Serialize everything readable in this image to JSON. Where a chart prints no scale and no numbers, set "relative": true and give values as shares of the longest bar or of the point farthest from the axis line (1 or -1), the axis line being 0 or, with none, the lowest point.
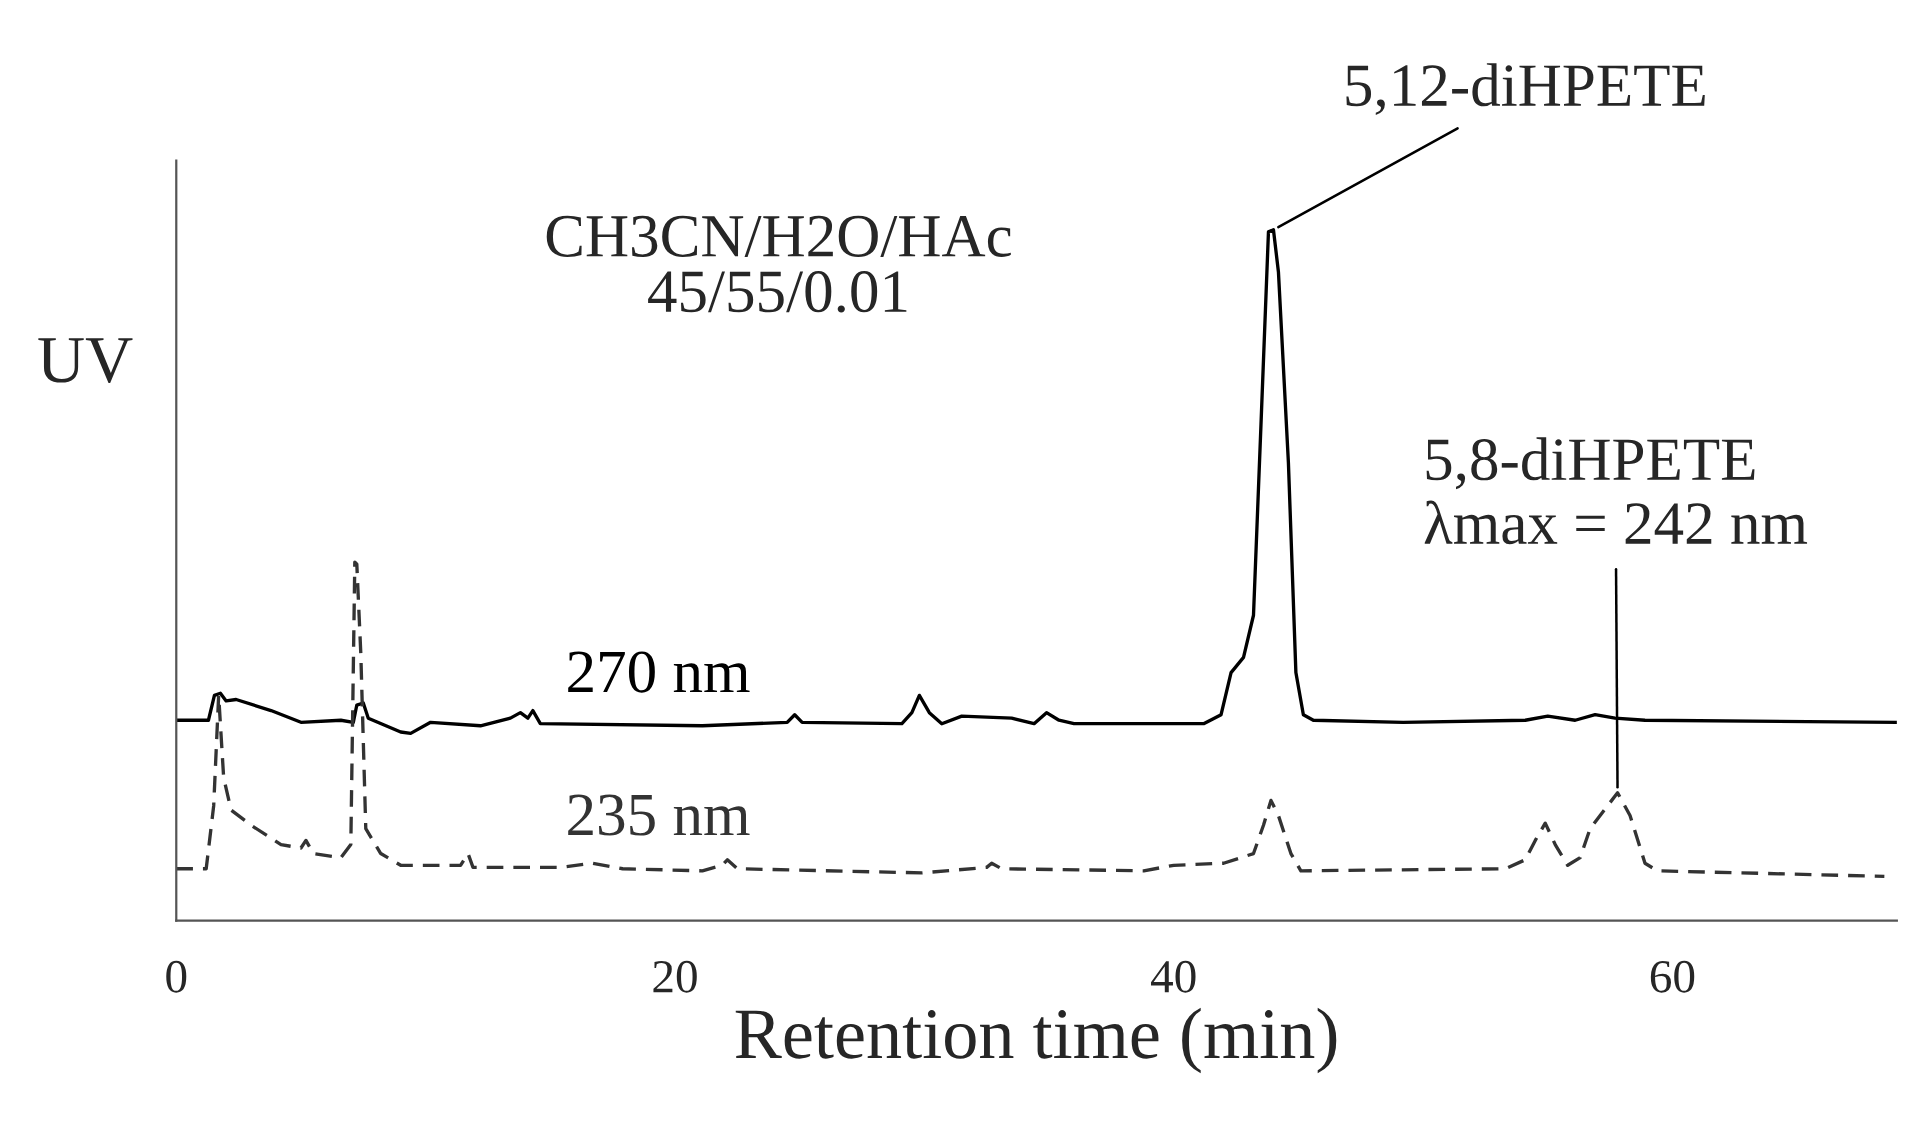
{
  "chart_data": {
    "type": "line",
    "relative": true,
    "xlabel": "Retention time (min)",
    "ylabel": "UV",
    "xlim": [
      0,
      69
    ],
    "xticks": [
      0,
      20,
      40,
      60
    ],
    "grid": false,
    "legend": false,
    "marker": "none",
    "annotations": [
      "CH3CN/H2O/HAc\n45/55/0.01",
      {
        "text": "5,12-diHPETE",
        "x": 44.0,
        "y": 1.0
      },
      {
        "text": "5,8-diHPETE\nλmax = 242 nm",
        "x": 57.8,
        "y": 0.185
      }
    ],
    "series": [
      {
        "name": "270 nm",
        "color": "#000000",
        "line_style": "solid",
        "x": [
          0,
          1.29,
          1.53,
          1.77,
          2.0,
          2.4,
          3.8,
          5.0,
          6.6,
          7.1,
          7.24,
          7.5,
          7.7,
          9.0,
          9.4,
          10.2,
          12.2,
          13.4,
          13.8,
          14.1,
          14.3,
          14.6,
          21.1,
          24.5,
          24.8,
          25.1,
          29.1,
          29.5,
          29.8,
          30.2,
          30.7,
          31.5,
          33.5,
          34.4,
          34.9,
          35.4,
          36.0,
          41.2,
          41.9,
          42.3,
          42.8,
          43.2,
          43.5,
          43.8,
          44.0,
          44.2,
          44.6,
          44.9,
          45.2,
          45.6,
          49.2,
          54.1,
          55.0,
          56.1,
          56.9,
          57.7,
          58.9,
          69.0
        ],
        "values": [
          0.29,
          0.29,
          0.326,
          0.329,
          0.318,
          0.32,
          0.304,
          0.287,
          0.29,
          0.287,
          0.312,
          0.315,
          0.293,
          0.273,
          0.271,
          0.287,
          0.282,
          0.293,
          0.301,
          0.293,
          0.304,
          0.285,
          0.282,
          0.287,
          0.298,
          0.287,
          0.285,
          0.301,
          0.326,
          0.301,
          0.285,
          0.296,
          0.293,
          0.285,
          0.301,
          0.29,
          0.285,
          0.285,
          0.298,
          0.359,
          0.381,
          0.442,
          0.718,
          0.997,
          1.0,
          0.939,
          0.663,
          0.359,
          0.298,
          0.29,
          0.287,
          0.29,
          0.296,
          0.29,
          0.298,
          0.293,
          0.29,
          0.287
        ]
      },
      {
        "name": "235 nm",
        "color": "#333333",
        "line_style": "dashed",
        "x": [
          0,
          1.2,
          1.5,
          1.7,
          1.9,
          2.2,
          3.0,
          4.2,
          5.0,
          5.2,
          5.5,
          6.6,
          7.0,
          7.16,
          7.24,
          7.4,
          7.6,
          8.2,
          9.0,
          11.4,
          11.7,
          11.9,
          15.4,
          16.7,
          17.9,
          21.1,
          21.9,
          22.1,
          22.5,
          29.9,
          32.5,
          32.7,
          33.1,
          38.8,
          40.0,
          42.0,
          43.2,
          43.6,
          43.9,
          44.2,
          44.7,
          45.1,
          53.3,
          54.1,
          54.5,
          54.9,
          55.3,
          55.8,
          56.3,
          56.7,
          57.8,
          58.3,
          58.9,
          59.4,
          68.5
        ],
        "values": [
          0.075,
          0.075,
          0.166,
          0.326,
          0.207,
          0.16,
          0.138,
          0.11,
          0.105,
          0.116,
          0.097,
          0.091,
          0.11,
          0.519,
          0.516,
          0.387,
          0.133,
          0.097,
          0.08,
          0.08,
          0.097,
          0.077,
          0.077,
          0.083,
          0.075,
          0.072,
          0.08,
          0.088,
          0.075,
          0.069,
          0.077,
          0.083,
          0.075,
          0.072,
          0.08,
          0.083,
          0.097,
          0.138,
          0.174,
          0.152,
          0.097,
          0.072,
          0.075,
          0.088,
          0.116,
          0.141,
          0.11,
          0.08,
          0.091,
          0.133,
          0.185,
          0.152,
          0.083,
          0.072,
          0.064
        ]
      }
    ]
  }
}
